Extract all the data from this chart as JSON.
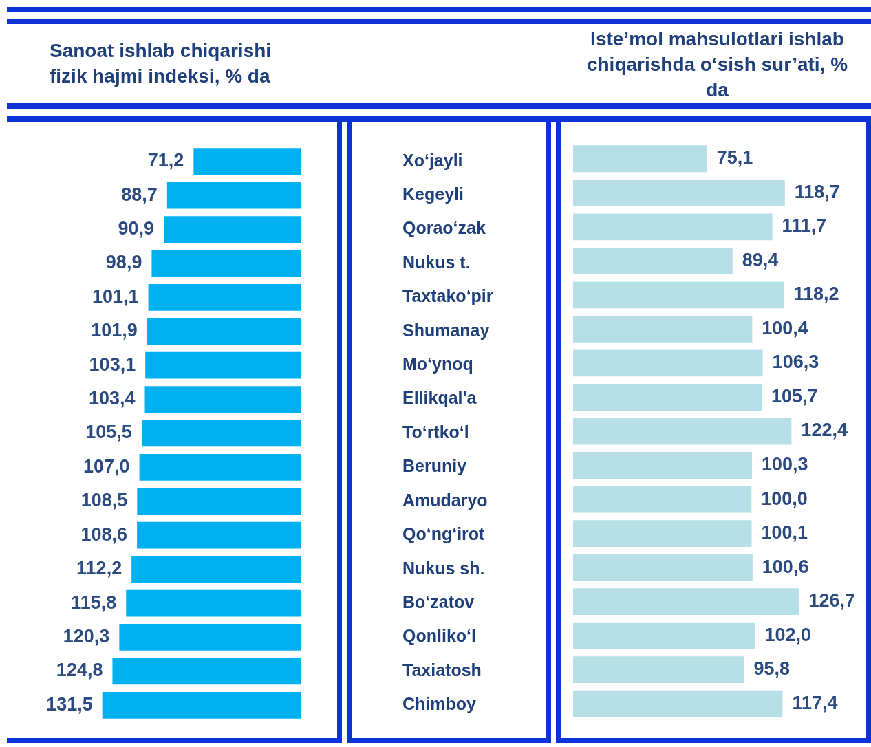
{
  "chart_data": [
    {
      "type": "bar",
      "orientation": "horizontal",
      "title": "Sanoat ishlab chiqarishi fizik hajmi indeksi, % da",
      "categories": [
        "Xo‘jayli",
        "Kegeyli",
        "Qorao‘zak",
        "Nukus t.",
        "Taxtako‘pir",
        "Shumanay",
        "Mo‘ynoq",
        "Ellikqal'a",
        "To‘rtko‘l",
        "Beruniy",
        "Amudaryo",
        "Qo‘ng‘irot",
        "Nukus sh.",
        "Bo‘zatov",
        "Qonliko‘l",
        "Taxiatosh",
        "Chimboy"
      ],
      "values": [
        71.2,
        88.7,
        90.9,
        98.9,
        101.1,
        101.9,
        103.1,
        103.4,
        105.5,
        107.0,
        108.5,
        108.6,
        112.2,
        115.8,
        120.3,
        124.8,
        131.5
      ],
      "value_labels": [
        "71,2",
        "88,7",
        "90,9",
        "98,9",
        "101,1",
        "101,9",
        "103,1",
        "103,4",
        "105,5",
        "107,0",
        "108,5",
        "108,6",
        "112,2",
        "115,8",
        "120,3",
        "124,8",
        "131,5"
      ],
      "color": "#00b0f0",
      "tick_labels": "y",
      "legend": false
    },
    {
      "type": "bar",
      "orientation": "horizontal",
      "title": "Iste’mol mahsulotlari ishlab chiqarishda o‘sish sur’ati, % da",
      "categories": [
        null,
        null,
        null,
        null,
        null,
        null,
        null,
        null,
        null,
        null,
        null,
        null,
        null,
        null,
        null,
        null,
        null
      ],
      "values": [
        75.1,
        118.7,
        111.7,
        89.4,
        118.2,
        100.4,
        106.3,
        105.7,
        122.4,
        100.3,
        100.0,
        100.1,
        100.6,
        126.7,
        102.0,
        95.8,
        117.4
      ],
      "value_labels": [
        "75,1",
        "118,7",
        "111,7",
        "89,4",
        "118,2",
        "100,4",
        "106,3",
        "105,7",
        "122,4",
        "100,3",
        "100,0",
        "100,1",
        "100,6",
        "126,7",
        "102,0",
        "95,8",
        "117,4"
      ],
      "color": "#b7dfe8",
      "tick_labels": false,
      "legend": false
    }
  ]
}
